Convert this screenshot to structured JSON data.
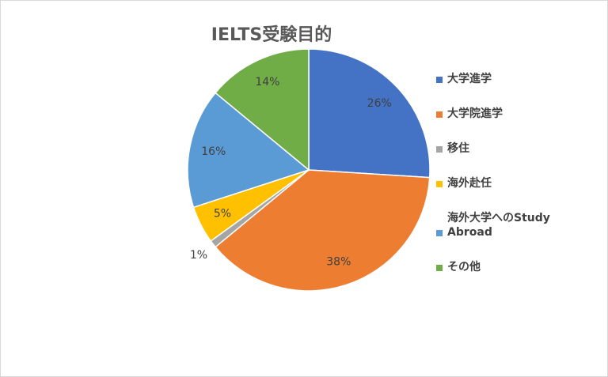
{
  "chart_data": {
    "type": "pie",
    "title": "IELTS受験目的",
    "categories": [
      "大学進学",
      "大学院進学",
      "移住",
      "海外赴任",
      "海外大学へのStudy Abroad",
      "その他"
    ],
    "values": [
      26,
      38,
      1,
      5,
      16,
      14
    ],
    "value_labels": [
      "26%",
      "38%",
      "1%",
      "5%",
      "16%",
      "14%"
    ],
    "colors": [
      "#4472c4",
      "#ed7d31",
      "#a5a5a5",
      "#ffc000",
      "#5b9bd5",
      "#70ad47"
    ],
    "legend": "right"
  }
}
